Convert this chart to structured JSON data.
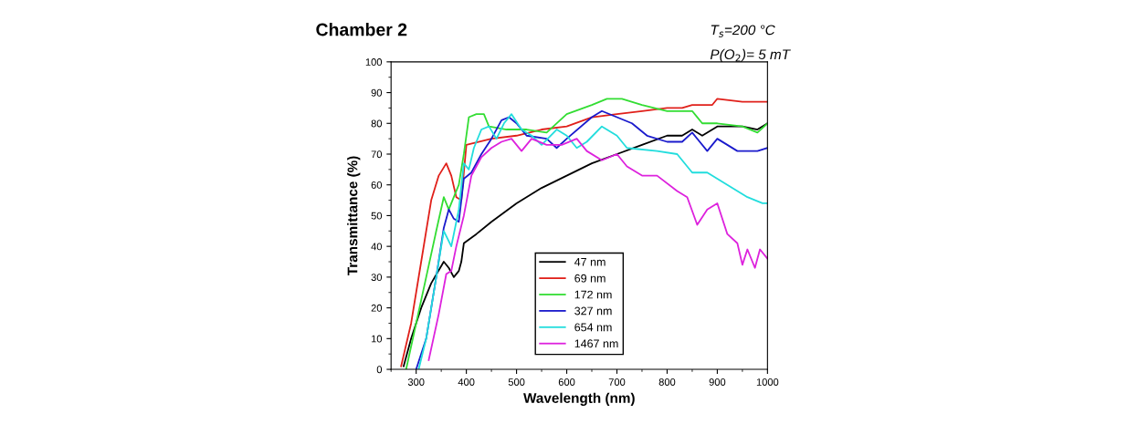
{
  "chart_data": {
    "type": "line",
    "title": "Chamber 2",
    "xlabel": "Wavelength (nm)",
    "ylabel": "Transmittance (%)",
    "annotations": [
      "T$_{s}$=200 °C",
      "P(O$_{2}$)= 5 mT"
    ],
    "xlim": [
      250,
      1000
    ],
    "xticks": [
      300,
      400,
      500,
      600,
      700,
      800,
      900,
      1000
    ],
    "ylim": [
      0,
      100
    ],
    "yticks": [
      0,
      10,
      20,
      30,
      40,
      50,
      60,
      70,
      80,
      90,
      100
    ],
    "grid": false,
    "legend": "bottom",
    "marker": "none",
    "line_style": "solid",
    "series": [
      {
        "name": "47 nm",
        "color": "#000000",
        "x": [
          275,
          290,
          310,
          330,
          355,
          365,
          375,
          385,
          390,
          395,
          420,
          450,
          500,
          550,
          600,
          650,
          700,
          750,
          800,
          830,
          850,
          870,
          900,
          950,
          980,
          1000
        ],
        "values": [
          1,
          10,
          20,
          28,
          35,
          33,
          30,
          32,
          35,
          41,
          44,
          48,
          54,
          59,
          63,
          67,
          70,
          73,
          76,
          76,
          78,
          76,
          79,
          79,
          78,
          80
        ]
      },
      {
        "name": "69 nm",
        "color": "#e0201a",
        "x": [
          270,
          290,
          310,
          330,
          345,
          360,
          370,
          380,
          390,
          400,
          450,
          500,
          550,
          600,
          650,
          700,
          750,
          800,
          830,
          850,
          890,
          900,
          950,
          1000
        ],
        "values": [
          1,
          15,
          35,
          55,
          63,
          67,
          63,
          56,
          55,
          73,
          75,
          76,
          78,
          79,
          82,
          83,
          84,
          85,
          85,
          86,
          86,
          88,
          87,
          87
        ]
      },
      {
        "name": "172 nm",
        "color": "#33dd33",
        "x": [
          280,
          300,
          320,
          340,
          355,
          365,
          375,
          385,
          395,
          405,
          420,
          435,
          445,
          480,
          520,
          560,
          600,
          650,
          680,
          710,
          750,
          800,
          850,
          870,
          900,
          950,
          980,
          1000
        ],
        "values": [
          0,
          15,
          30,
          45,
          56,
          52,
          56,
          60,
          70,
          82,
          83,
          83,
          79,
          78,
          78,
          77,
          83,
          86,
          88,
          88,
          86,
          84,
          84,
          80,
          80,
          79,
          77,
          80
        ]
      },
      {
        "name": "327 nm",
        "color": "#1a1acc",
        "x": [
          300,
          320,
          340,
          355,
          365,
          375,
          385,
          395,
          410,
          430,
          450,
          470,
          485,
          500,
          520,
          560,
          580,
          600,
          650,
          670,
          700,
          730,
          760,
          800,
          830,
          850,
          880,
          900,
          940,
          980,
          1000
        ],
        "values": [
          0,
          10,
          30,
          46,
          52,
          49,
          48,
          62,
          64,
          70,
          75,
          81,
          82,
          80,
          76,
          75,
          72,
          75,
          82,
          84,
          82,
          80,
          76,
          74,
          74,
          77,
          71,
          75,
          71,
          71,
          72
        ]
      },
      {
        "name": "654 nm",
        "color": "#22dddd",
        "x": [
          305,
          320,
          340,
          355,
          370,
          385,
          395,
          405,
          415,
          430,
          445,
          460,
          475,
          490,
          510,
          530,
          550,
          580,
          600,
          620,
          640,
          670,
          700,
          720,
          780,
          820,
          850,
          880,
          920,
          960,
          990,
          1000
        ],
        "values": [
          0,
          10,
          30,
          45,
          40,
          52,
          67,
          65,
          72,
          78,
          79,
          75,
          80,
          83,
          78,
          76,
          73,
          78,
          76,
          72,
          74,
          79,
          76,
          72,
          71,
          70,
          64,
          64,
          60,
          56,
          54,
          54
        ]
      },
      {
        "name": "1467 nm",
        "color": "#dd22dd",
        "x": [
          325,
          345,
          360,
          370,
          380,
          395,
          410,
          430,
          450,
          470,
          490,
          510,
          530,
          560,
          590,
          620,
          640,
          670,
          700,
          720,
          750,
          780,
          820,
          840,
          860,
          880,
          900,
          920,
          940,
          950,
          960,
          975,
          985,
          1000
        ],
        "values": [
          3,
          18,
          31,
          32,
          40,
          50,
          63,
          69,
          72,
          74,
          75,
          71,
          75,
          73,
          73,
          75,
          71,
          68,
          70,
          66,
          63,
          63,
          58,
          56,
          47,
          52,
          54,
          44,
          41,
          34,
          39,
          33,
          39,
          36
        ]
      }
    ]
  }
}
